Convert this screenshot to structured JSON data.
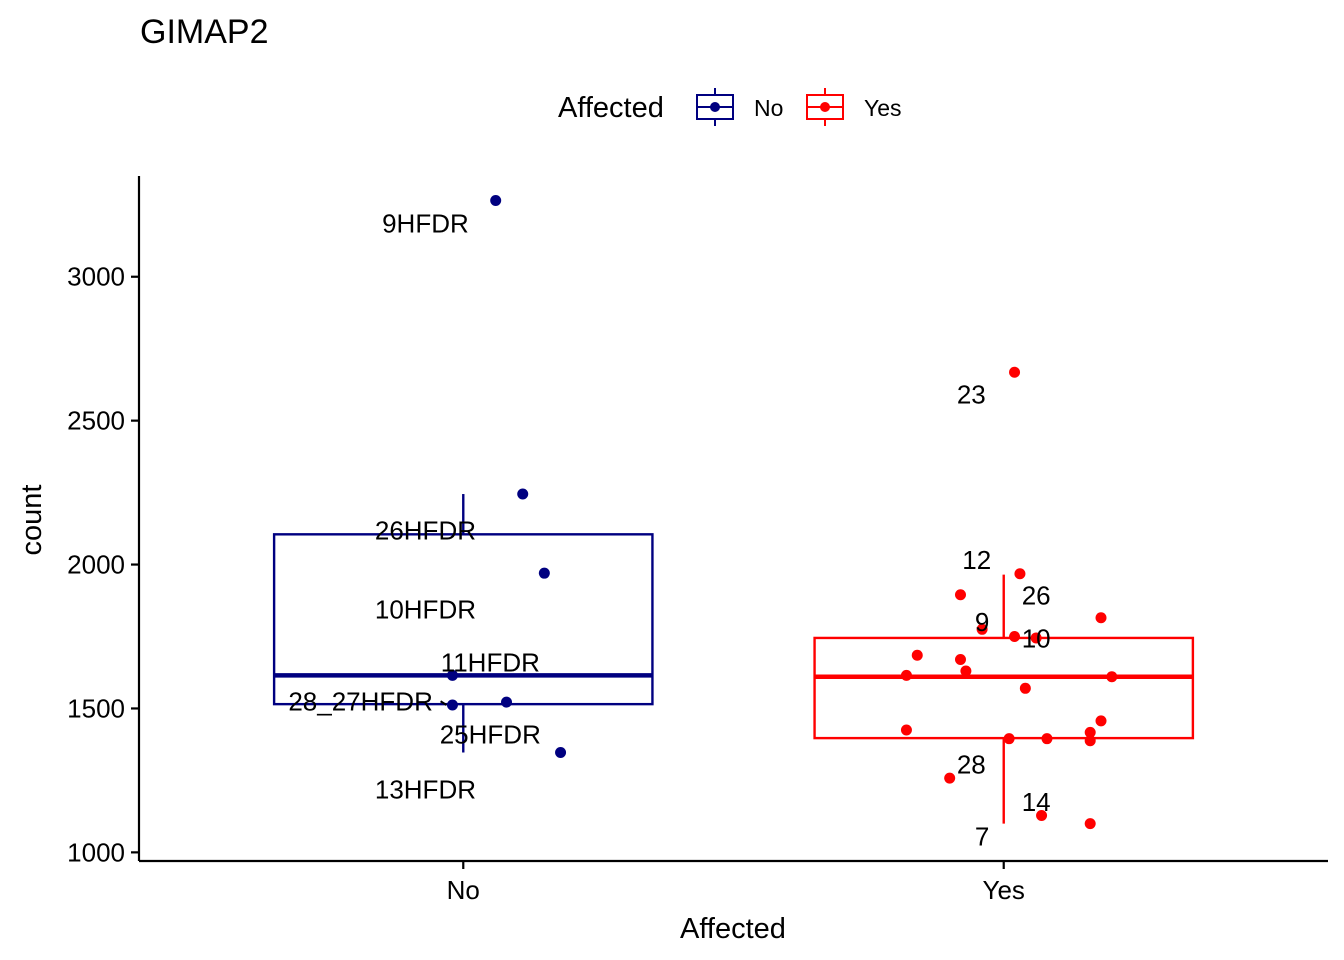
{
  "chart_data": {
    "type": "boxplot",
    "title": "GIMAP2",
    "xlabel": "Affected",
    "ylabel": "count",
    "categories": [
      "No",
      "Yes"
    ],
    "ylim": [
      970,
      3350
    ],
    "yticks": [
      1000,
      1500,
      2000,
      2500,
      3000
    ],
    "legend": {
      "title": "Affected",
      "position": "top",
      "entries": [
        {
          "label": "No",
          "color": "#000080"
        },
        {
          "label": "Yes",
          "color": "#ff0000"
        }
      ]
    },
    "grid": false,
    "series": [
      {
        "name": "No",
        "color": "#000080",
        "box": {
          "min": 1347,
          "q1": 1515,
          "median": 1615,
          "q3": 2105,
          "max": 2245
        },
        "points": [
          {
            "x_offset": 0.06,
            "y": 3265
          },
          {
            "x_offset": 0.11,
            "y": 2245
          },
          {
            "x_offset": 0.15,
            "y": 1970
          },
          {
            "x_offset": -0.02,
            "y": 1615
          },
          {
            "x_offset": -0.02,
            "y": 1512
          },
          {
            "x_offset": 0.08,
            "y": 1522
          },
          {
            "x_offset": 0.18,
            "y": 1347
          }
        ],
        "labels": [
          {
            "text": "9HFDR",
            "x_offset": -0.07,
            "y": 3185
          },
          {
            "text": "26HFDR",
            "x_offset": -0.07,
            "y": 2118
          },
          {
            "text": "10HFDR",
            "x_offset": -0.07,
            "y": 1843
          },
          {
            "text": "11HFDR",
            "x_offset": 0.05,
            "y": 1660
          },
          {
            "text": "28_27HFDR",
            "x_offset": -0.19,
            "y": 1525
          },
          {
            "text": "25HFDR",
            "x_offset": 0.05,
            "y": 1410
          },
          {
            "text": "13HFDR",
            "x_offset": -0.07,
            "y": 1218
          }
        ]
      },
      {
        "name": "Yes",
        "color": "#ff0000",
        "box": {
          "min": 1100,
          "q1": 1397,
          "median": 1610,
          "q3": 1745,
          "max": 1965
        },
        "points": [
          {
            "x_offset": 0.02,
            "y": 2668
          },
          {
            "x_offset": 0.03,
            "y": 1968
          },
          {
            "x_offset": -0.08,
            "y": 1895
          },
          {
            "x_offset": 0.18,
            "y": 1815
          },
          {
            "x_offset": -0.04,
            "y": 1775
          },
          {
            "x_offset": 0.02,
            "y": 1750
          },
          {
            "x_offset": 0.06,
            "y": 1745
          },
          {
            "x_offset": -0.16,
            "y": 1685
          },
          {
            "x_offset": -0.08,
            "y": 1670
          },
          {
            "x_offset": -0.07,
            "y": 1630
          },
          {
            "x_offset": -0.18,
            "y": 1615
          },
          {
            "x_offset": 0.2,
            "y": 1610
          },
          {
            "x_offset": 0.04,
            "y": 1570
          },
          {
            "x_offset": 0.18,
            "y": 1457
          },
          {
            "x_offset": -0.18,
            "y": 1425
          },
          {
            "x_offset": 0.16,
            "y": 1417
          },
          {
            "x_offset": 0.16,
            "y": 1388
          },
          {
            "x_offset": 0.01,
            "y": 1395
          },
          {
            "x_offset": 0.08,
            "y": 1395
          },
          {
            "x_offset": -0.1,
            "y": 1258
          },
          {
            "x_offset": 0.07,
            "y": 1128
          },
          {
            "x_offset": 0.16,
            "y": 1100
          }
        ],
        "labels": [
          {
            "text": "23",
            "x_offset": -0.06,
            "y": 2590
          },
          {
            "text": "12",
            "x_offset": -0.05,
            "y": 2016
          },
          {
            "text": "26",
            "x_offset": 0.06,
            "y": 1893
          },
          {
            "text": "9",
            "x_offset": -0.04,
            "y": 1800
          },
          {
            "text": "10",
            "x_offset": 0.06,
            "y": 1743
          },
          {
            "text": "28",
            "x_offset": -0.06,
            "y": 1305
          },
          {
            "text": "14",
            "x_offset": 0.06,
            "y": 1175
          },
          {
            "text": "7",
            "x_offset": -0.04,
            "y": 1055
          }
        ]
      }
    ]
  }
}
